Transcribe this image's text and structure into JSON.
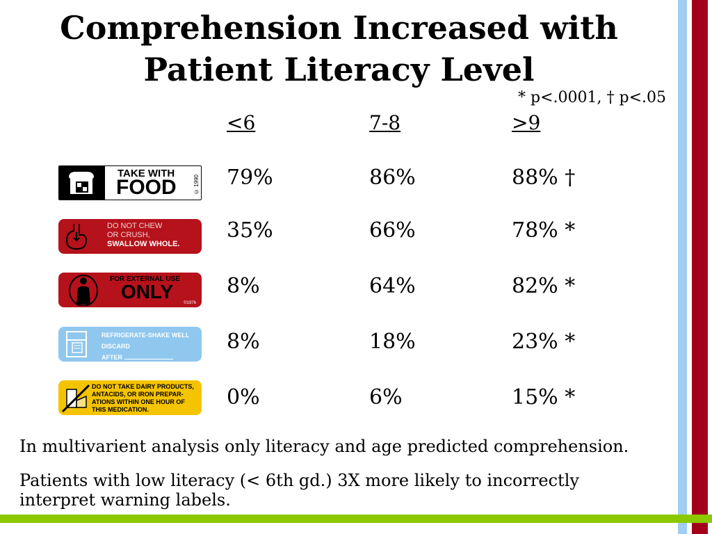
{
  "title": {
    "line1": "Comprehension Increased with",
    "line2": "Patient Literacy Level"
  },
  "footnote": "* p<.0001, † p<.05",
  "columns": [
    "<6",
    "7-8",
    ">9"
  ],
  "rows": [
    {
      "label": {
        "line1": "TAKE WITH",
        "line2": "FOOD",
        "copyright": "© 1990"
      },
      "values": [
        "79%",
        "86%",
        "88% †"
      ]
    },
    {
      "label": {
        "line1": "DO NOT CHEW",
        "line2": "OR CRUSH,",
        "line3": "SWALLOW WHOLE."
      },
      "values": [
        "35%",
        "66%",
        "78% *"
      ]
    },
    {
      "label": {
        "line1": "FOR EXTERNAL USE",
        "line2": "ONLY",
        "copyright": "©1976"
      },
      "values": [
        "8%",
        "64%",
        "82% *"
      ]
    },
    {
      "label": {
        "line1": "REFRIGERATE-SHAKE WELL",
        "line2": "DISCARD",
        "line3": "AFTER"
      },
      "values": [
        "8%",
        "18%",
        "23% *"
      ]
    },
    {
      "label": {
        "line1": "DO NOT TAKE DAIRY PRODUCTS,",
        "line2": "ANTACIDS, OR IRON PREPAR-",
        "line3": "ATIONS WITHIN ONE HOUR OF",
        "line4": "THIS MEDICATION."
      },
      "values": [
        "0%",
        "6%",
        "15% *"
      ]
    }
  ],
  "notes": [
    "In multivarient analysis only literacy and age predicted comprehension.",
    "Patients with low literacy (< 6th gd.) 3X more likely to incorrectly interpret warning labels."
  ],
  "colors": {
    "accent_blue": "#9fcef2",
    "accent_red": "#a4001d",
    "accent_green": "#8cc800"
  }
}
